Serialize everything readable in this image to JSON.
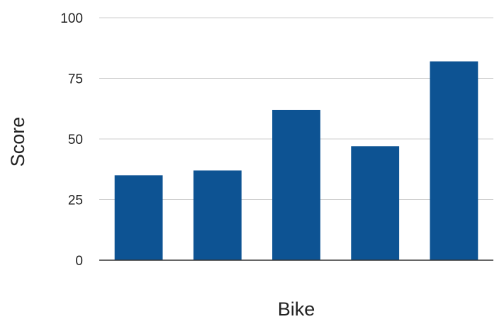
{
  "chart_data": {
    "type": "bar",
    "title": "",
    "xlabel": "Bike",
    "ylabel": "Score",
    "categories": [
      "",
      "",
      "",
      "",
      ""
    ],
    "values": [
      35,
      37,
      62,
      47,
      82
    ],
    "ylim": [
      0,
      100
    ],
    "yticks": [
      "0",
      "25",
      "50",
      "75",
      "100"
    ],
    "grid": true,
    "legend": "none",
    "bar_color": "#0d5393",
    "grid_color": "#cccccc"
  }
}
